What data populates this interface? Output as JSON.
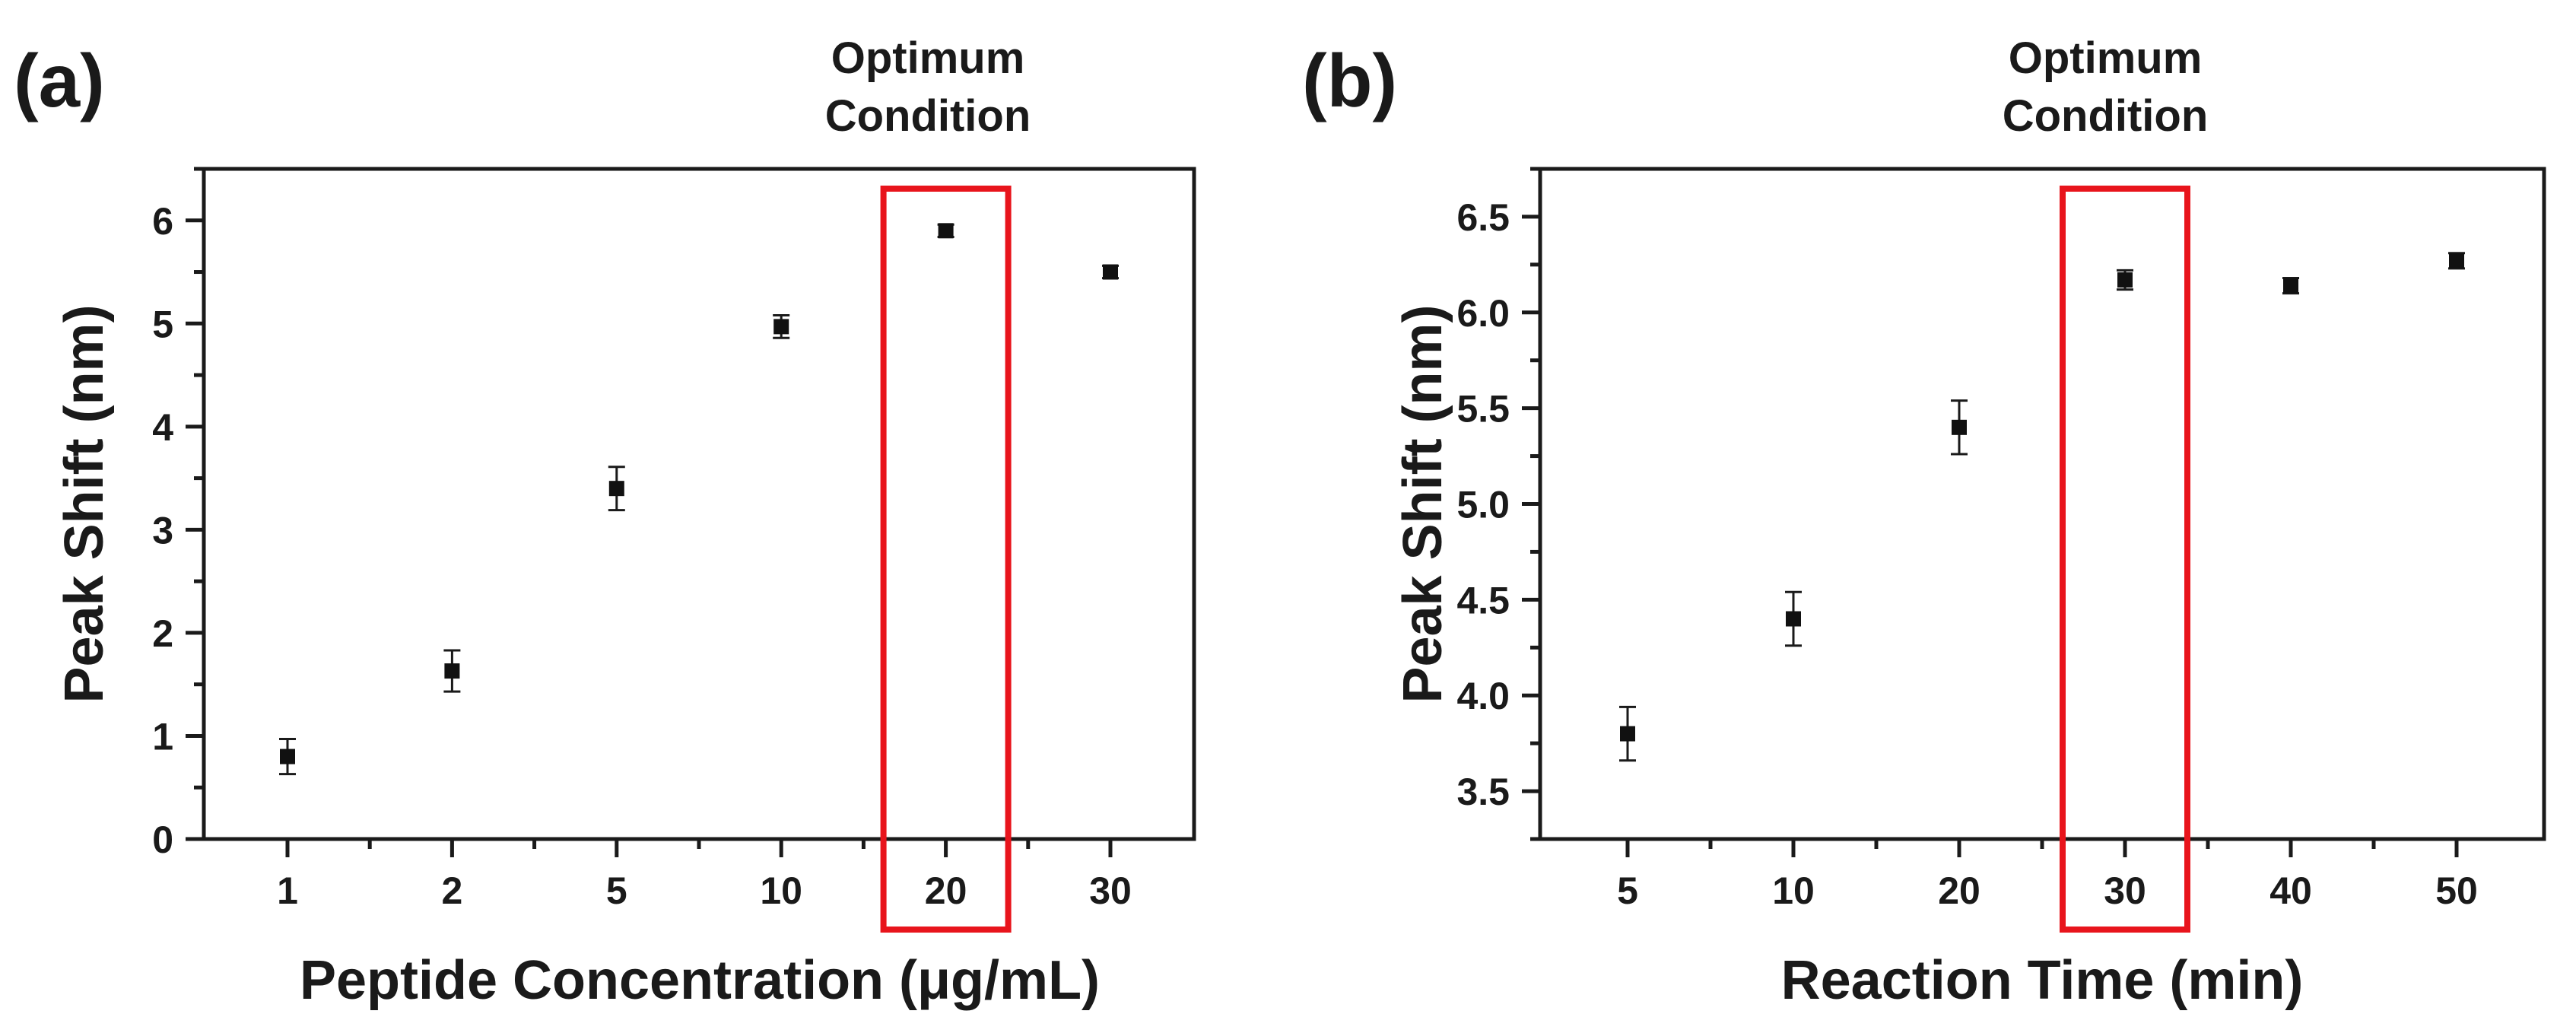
{
  "chart_data": [
    {
      "panel_label": "(a)",
      "type": "scatter",
      "annotation": [
        "Optimum",
        "Condition"
      ],
      "highlight_category": "20",
      "xlabel": "Peptide Concentration (μg/mL)",
      "ylabel": "Peak Shift (nm)",
      "categories": [
        "1",
        "2",
        "5",
        "10",
        "20",
        "30"
      ],
      "values": [
        0.8,
        1.63,
        3.4,
        4.97,
        5.9,
        5.5
      ],
      "errors": [
        0.17,
        0.2,
        0.21,
        0.11,
        0.06,
        0.06
      ],
      "ylim": [
        0,
        6.5
      ],
      "yticks": [
        "0",
        "1",
        "2",
        "3",
        "4",
        "5",
        "6"
      ],
      "ytick_values": [
        0,
        1,
        2,
        3,
        4,
        5,
        6
      ]
    },
    {
      "panel_label": "(b)",
      "type": "scatter",
      "annotation": [
        "Optimum",
        "Condition"
      ],
      "highlight_category": "30",
      "xlabel": "Reaction Time (min)",
      "ylabel": "Peak Shift (nm)",
      "categories": [
        "5",
        "10",
        "20",
        "30",
        "40",
        "50"
      ],
      "values": [
        3.8,
        4.4,
        5.4,
        6.17,
        6.14,
        6.27
      ],
      "errors": [
        0.14,
        0.14,
        0.14,
        0.05,
        0.04,
        0.04
      ],
      "ylim": [
        3.25,
        6.75
      ],
      "yticks": [
        "3.5",
        "4.0",
        "4.5",
        "5.0",
        "5.5",
        "6.0",
        "6.5"
      ],
      "ytick_values": [
        3.5,
        4.0,
        4.5,
        5.0,
        5.5,
        6.0,
        6.5
      ]
    }
  ],
  "colors": {
    "highlight": "#e8141c",
    "ink": "#1a1a1a"
  }
}
